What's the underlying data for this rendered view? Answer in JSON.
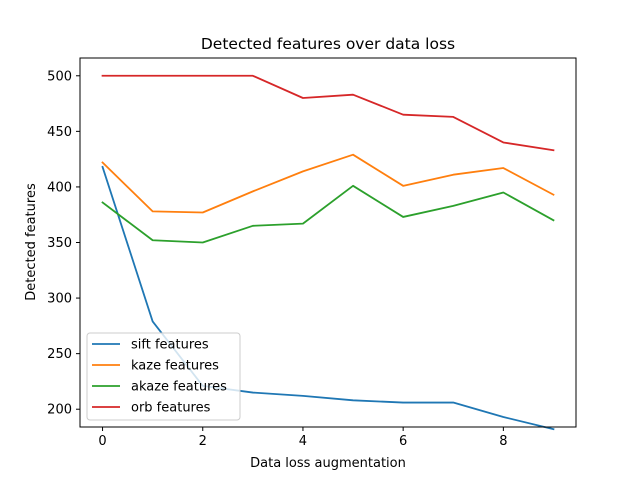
{
  "chart_data": {
    "type": "line",
    "title": "Detected features over data loss",
    "xlabel": "Data loss augmentation",
    "ylabel": "Detected features",
    "x": [
      0,
      1,
      2,
      3,
      4,
      5,
      6,
      7,
      8,
      9
    ],
    "xlim": [
      -0.45,
      9.45
    ],
    "ylim": [
      184,
      516
    ],
    "xticks": [
      0,
      2,
      4,
      6,
      8
    ],
    "yticks": [
      200,
      250,
      300,
      350,
      400,
      450,
      500
    ],
    "grid": false,
    "legend_position": "lower-left",
    "series": [
      {
        "name": "sift features",
        "color": "#1f77b4",
        "values": [
          418,
          279,
          221,
          215,
          212,
          208,
          206,
          206,
          193,
          182
        ]
      },
      {
        "name": "kaze features",
        "color": "#ff7f0e",
        "values": [
          422,
          378,
          377,
          396,
          414,
          429,
          401,
          411,
          417,
          393
        ]
      },
      {
        "name": "akaze features",
        "color": "#2ca02c",
        "values": [
          386,
          352,
          350,
          365,
          367,
          401,
          373,
          383,
          395,
          370
        ]
      },
      {
        "name": "orb features",
        "color": "#d62728",
        "values": [
          500,
          500,
          500,
          500,
          480,
          483,
          465,
          463,
          440,
          433
        ]
      }
    ]
  }
}
